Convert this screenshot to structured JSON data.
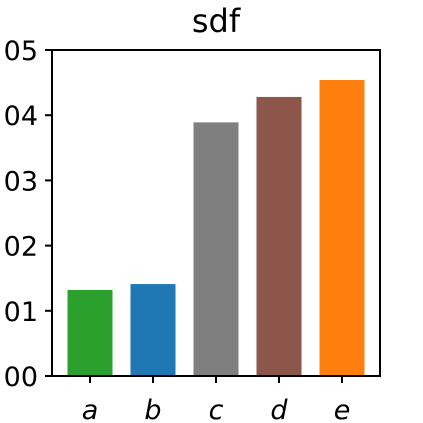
{
  "chart_data": {
    "type": "bar",
    "title": "sdf",
    "xlabel": "",
    "ylabel": "",
    "categories": [
      "a",
      "b",
      "c",
      "d",
      "e"
    ],
    "values": [
      0.0132,
      0.0141,
      0.0389,
      0.0428,
      0.0454
    ],
    "colors": [
      "#2ca02c",
      "#1f77b4",
      "#7f7f7f",
      "#8c564b",
      "#ff7f0e"
    ],
    "ylim": [
      0,
      0.05
    ],
    "yticks": [
      0.0,
      0.01,
      0.02,
      0.03,
      0.04,
      0.05
    ],
    "ytick_labels": [
      "00",
      "01",
      "02",
      "03",
      "04",
      "05"
    ],
    "grid": false,
    "legend": "none"
  }
}
